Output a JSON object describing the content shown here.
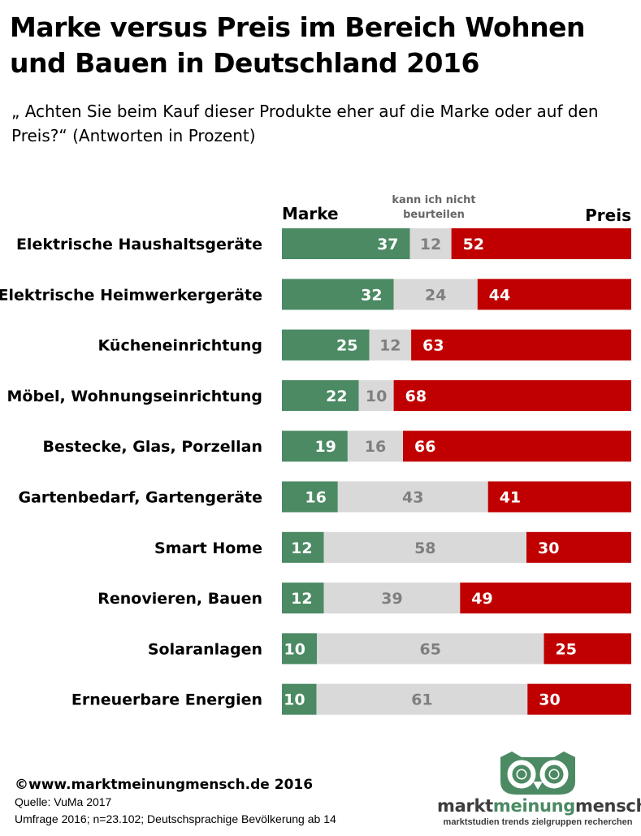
{
  "title": "Marke versus Preis im Bereich Wohnen und Bauen in Deutschland 2016",
  "subtitle": "„ Achten Sie beim Kauf dieser Produkte eher auf die Marke oder auf den Preis?“ (Antworten in Prozent)",
  "legend": {
    "brand": "Marke",
    "unknown": "kann ich nicht beurteilen",
    "price": "Preis"
  },
  "colors": {
    "brand": "#4b8a63",
    "unknown": "#d9d9d9",
    "price": "#c00000",
    "unknown_label": "#7f7f7f"
  },
  "chart_data": {
    "type": "bar",
    "orientation": "horizontal",
    "stacked": true,
    "categories": [
      "Elektrische Haushaltsgeräte",
      "Elektrische Heimwerkergeräte",
      "Kücheneinrichtung",
      "Möbel, Wohnungseinrichtung",
      "Bestecke, Glas, Porzellan",
      "Gartenbedarf, Gartengeräte",
      "Smart Home",
      "Renovieren, Bauen",
      "Solaranlagen",
      "Erneuerbare Energien"
    ],
    "series": [
      {
        "name": "Marke",
        "values": [
          37,
          32,
          25,
          22,
          19,
          16,
          12,
          12,
          10,
          10
        ]
      },
      {
        "name": "kann ich nicht beurteilen",
        "values": [
          12,
          24,
          12,
          10,
          16,
          43,
          58,
          39,
          65,
          61
        ]
      },
      {
        "name": "Preis",
        "values": [
          52,
          44,
          63,
          68,
          66,
          41,
          30,
          49,
          25,
          30
        ]
      }
    ],
    "xlim": [
      0,
      100
    ],
    "grid": false,
    "legend_placement": "top"
  },
  "footer": {
    "copyright": "©www.marktmeinungmensch.de 2016",
    "source": "Quelle: VuMa 2017",
    "survey": "Umfrage 2016; n=23.102; Deutschsprachige Bevölkerung ab 14"
  },
  "logo": {
    "part1": "markt",
    "part2": "meinung",
    "part3": "mensch",
    "tagline": "marktstudien trends zielgruppen recherchen"
  }
}
